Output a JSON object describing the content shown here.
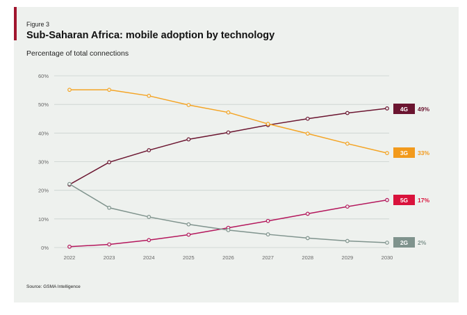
{
  "figure_label": "Figure 3",
  "title": "Sub-Saharan Africa: mobile adoption by technology",
  "subtitle": "Percentage of total connections",
  "source": "Source: GSMA Intelligence",
  "chart_data": {
    "type": "line",
    "title": "Sub-Saharan Africa: mobile adoption by technology",
    "ylabel": "Percentage of total connections",
    "x": [
      2022,
      2023,
      2024,
      2025,
      2026,
      2027,
      2028,
      2029,
      2030
    ],
    "ylim": [
      0,
      60
    ],
    "yticks": [
      "0%",
      "10%",
      "20%",
      "30%",
      "40%",
      "50%",
      "60%"
    ],
    "grid": true,
    "series": [
      {
        "name": "4G",
        "color": "#6b1530",
        "end_label": "49%",
        "values": [
          22,
          29.8,
          34,
          37.8,
          40.2,
          42.8,
          45,
          47,
          48.6
        ]
      },
      {
        "name": "3G",
        "color": "#f4a424",
        "end_label": "33%",
        "values": [
          55.1,
          55.1,
          53,
          49.8,
          47.2,
          43.2,
          39.8,
          36.3,
          33
        ]
      },
      {
        "name": "5G",
        "color": "#b4175c",
        "end_label": "17%",
        "values": [
          0.3,
          1.1,
          2.6,
          4.5,
          6.9,
          9.3,
          11.8,
          14.3,
          16.6
        ]
      },
      {
        "name": "2G",
        "color": "#7f938d",
        "end_label": "2%",
        "values": [
          22.2,
          13.9,
          10.7,
          8.1,
          6.1,
          4.6,
          3.3,
          2.3,
          1.7
        ]
      }
    ],
    "label_colors": {
      "4G": "#6b1530",
      "3G": "#f29a1c",
      "5G": "#d9133c",
      "2G": "#7f938d"
    }
  }
}
